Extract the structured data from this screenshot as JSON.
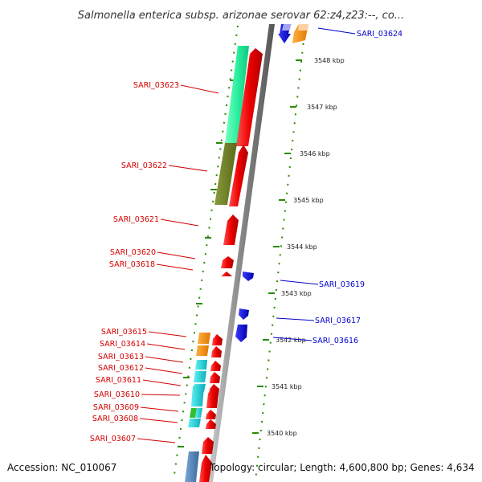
{
  "title": "Salmonella enterica subsp. arizonae serovar 62:z4,z23:--, co...",
  "footer": {
    "accession": "Accession: NC_010067",
    "topology": "Topology: circular; Length: 4,600,800 bp; Genes: 4,634"
  },
  "colors": {
    "forward": "#ff0000",
    "reverse": "#0000ff",
    "label_forward": "#d40000",
    "label_reverse": "#0000cc",
    "ruler_tick": "#2a8a00",
    "backbone": "#888888"
  },
  "kbp_scale": {
    "labels": [
      "3548 kbp",
      "3547 kbp",
      "3546 kbp",
      "3545 kbp",
      "3544 kbp",
      "3543 kbp",
      "3542 kbp",
      "3541 kbp",
      "3540 kbp"
    ]
  },
  "genes_forward": [
    {
      "id": "SARI_03623"
    },
    {
      "id": "SARI_03622"
    },
    {
      "id": "SARI_03621"
    },
    {
      "id": "SARI_03620"
    },
    {
      "id": "SARI_03618"
    },
    {
      "id": "SARI_03615"
    },
    {
      "id": "SARI_03614"
    },
    {
      "id": "SARI_03613"
    },
    {
      "id": "SARI_03612"
    },
    {
      "id": "SARI_03611"
    },
    {
      "id": "SARI_03610"
    },
    {
      "id": "SARI_03609"
    },
    {
      "id": "SARI_03608"
    },
    {
      "id": "SARI_03607"
    }
  ],
  "genes_reverse": [
    {
      "id": "SARI_03624"
    },
    {
      "id": "SARI_03619"
    },
    {
      "id": "SARI_03617"
    },
    {
      "id": "SARI_03616"
    }
  ]
}
